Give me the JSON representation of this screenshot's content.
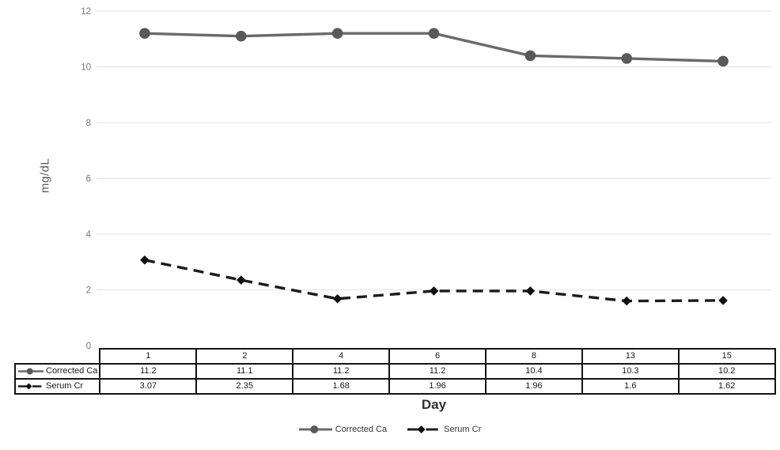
{
  "chart_data": {
    "type": "line",
    "title": "",
    "xlabel": "Day",
    "ylabel": "mg/dL",
    "ylim": [
      0,
      12
    ],
    "yticks": [
      0,
      2,
      4,
      6,
      8,
      10,
      12
    ],
    "categories": [
      "1",
      "2",
      "4",
      "6",
      "8",
      "13",
      "15"
    ],
    "series": [
      {
        "name": "Corrected Ca",
        "values": [
          11.2,
          11.1,
          11.2,
          11.2,
          10.4,
          10.3,
          10.2
        ],
        "line_style": "solid",
        "marker": "circle",
        "line_color": "#6a6a6a",
        "marker_color": "#595959"
      },
      {
        "name": "Serum Cr",
        "values": [
          3.07,
          2.35,
          1.68,
          1.96,
          1.96,
          1.6,
          1.62
        ],
        "line_style": "dashed",
        "marker": "diamond",
        "line_color": "#1c1c1c",
        "marker_color": "#111111"
      }
    ],
    "legend_position": "bottom",
    "grid": true,
    "data_table_visible": true,
    "colors": {
      "gridline": "#e6e6e6",
      "tick_label": "#757575",
      "axis_title": "#595959",
      "table_border": "#141414",
      "table_text": "#1a1a1a",
      "background": "#ffffff"
    }
  }
}
